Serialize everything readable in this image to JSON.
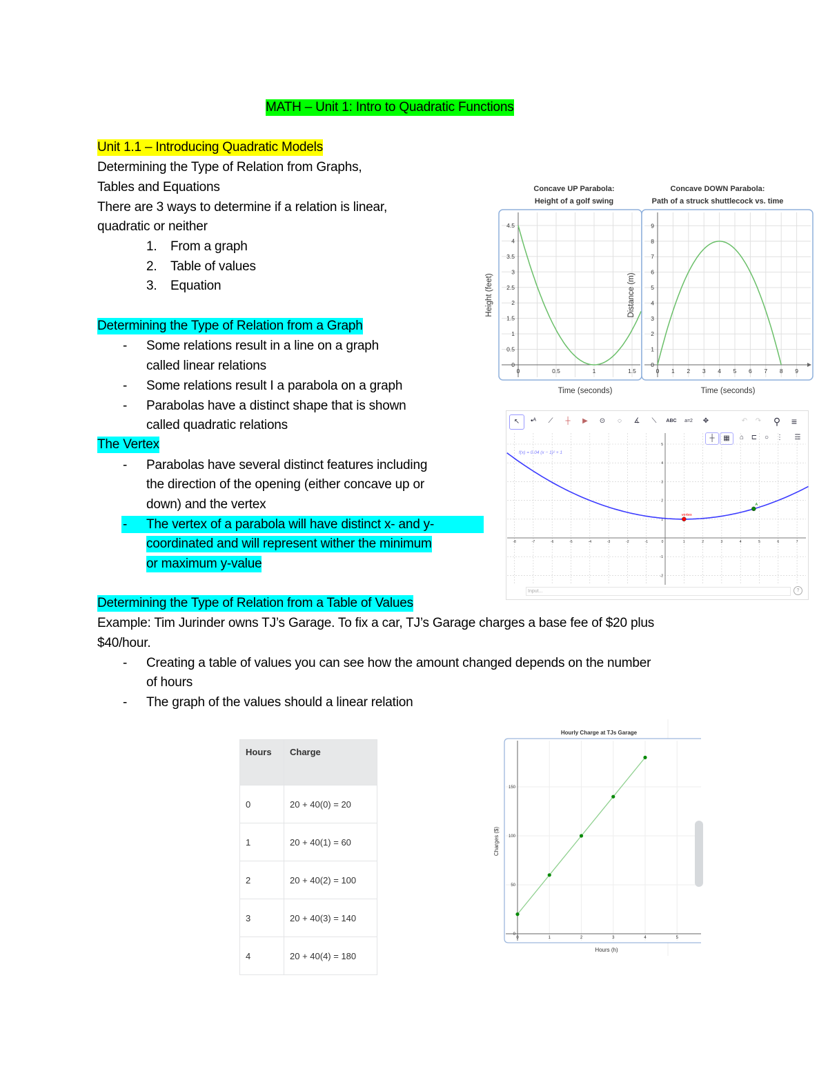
{
  "title": "MATH – Unit 1: Intro to Quadratic Functions",
  "section1": {
    "heading": "Unit 1.1 – Introducing Quadratic Models",
    "lines": [
      "Determining the Type of Relation from Graphs,",
      "Tables and Equations",
      "There are 3 ways to determine if a relation is linear,",
      "quadratic or neither"
    ],
    "list": [
      {
        "num": "1.",
        "text": "From a graph"
      },
      {
        "num": "2.",
        "text": "Table of values"
      },
      {
        "num": "3.",
        "text": "Equation"
      }
    ]
  },
  "section2": {
    "heading": "Determining the Type of Relation from a Graph",
    "bullets": [
      {
        "lines": [
          "Some relations result in a line on a graph",
          "called linear relations"
        ]
      },
      {
        "lines": [
          "Some relations result I a parabola on a graph"
        ]
      },
      {
        "lines": [
          "Parabolas have a distinct shape that is shown",
          "called quadratic relations"
        ]
      }
    ]
  },
  "section3": {
    "heading": "The Vertex",
    "bullets": [
      {
        "lines": [
          "Parabolas have several distinct features including",
          "the direction of the opening (either concave up or",
          "down) and the vertex"
        ]
      },
      {
        "lines": [
          "The vertex of a parabola will have distinct x- and y-",
          "coordinated and will represent wither the minimum",
          "or maximum y-value"
        ],
        "highlight": true
      }
    ]
  },
  "section4": {
    "heading": "Determining the Type of Relation from a Table of Values",
    "example_lines": [
      "Example: Tim Jurinder owns TJ’s Garage. To fix a car, TJ’s Garage charges a base fee of $20 plus",
      "$40/hour."
    ],
    "bullets": [
      {
        "lines": [
          "Creating a table of values you can see how the amount changed depends on the number",
          "of hours"
        ]
      },
      {
        "lines": [
          "The graph of the values should a linear relation"
        ]
      }
    ]
  },
  "bullet_char": "-",
  "table": {
    "headers": [
      "Hours",
      "Charge"
    ],
    "rows": [
      [
        "0",
        "20 + 40(0) = 20"
      ],
      [
        "1",
        "20 + 40(1) = 60"
      ],
      [
        "2",
        "20 + 40(2) = 100"
      ],
      [
        "3",
        "20 + 40(3) = 140"
      ],
      [
        "4",
        "20 + 40(4) = 180"
      ]
    ]
  },
  "geogebra": {
    "tools": [
      "cursor-icon",
      "point-icon",
      "line-icon",
      "perpendicular-icon",
      "polygon-icon",
      "circle-icon",
      "conic-icon",
      "angle-icon",
      "reflect-icon",
      "ABC",
      "a=2",
      "move-view-icon"
    ],
    "tool_labels": {
      "text": "ABC",
      "slider": "a=2"
    },
    "input_placeholder": "Input...",
    "help": "?",
    "curve_color": "#3b3bff"
  },
  "colors": {
    "highlight_green": "#00ff00",
    "highlight_yellow": "#ffff00",
    "highlight_cyan": "#00ffff",
    "curve_green": "#6abf69",
    "point_green": "#0a8a0a",
    "vertex_red": "#ff0000"
  },
  "chart_data": [
    {
      "type": "line",
      "title": [
        "Concave UP Parabola:",
        "Height of a golf swing"
      ],
      "xlabel": "Time (seconds)",
      "ylabel": "Height (feet)",
      "xlim": [
        0,
        1.6
      ],
      "ylim": [
        0,
        4.5
      ],
      "xticks": [
        "0",
        "0.5",
        "1",
        "1.5"
      ],
      "yticks": [
        "0",
        "0.5",
        "1",
        "1.5",
        "2",
        "2.5",
        "3",
        "3.5",
        "4",
        "4.5"
      ],
      "function": "y = 4.5(x - 1)^2",
      "vertex": [
        1,
        0
      ],
      "grid": true
    },
    {
      "type": "line",
      "title": [
        "Concave DOWN Parabola:",
        "Path of a struck shuttlecock vs. time"
      ],
      "xlabel": "Time (seconds)",
      "ylabel": "Distance (m)",
      "xlim": [
        0,
        9
      ],
      "ylim": [
        0,
        9
      ],
      "xticks": [
        "0",
        "1",
        "2",
        "3",
        "4",
        "5",
        "6",
        "7",
        "8",
        "9"
      ],
      "yticks": [
        "0",
        "1",
        "2",
        "3",
        "4",
        "5",
        "6",
        "7",
        "8",
        "9"
      ],
      "function": "y = -0.5(x - 4)^2 + 8",
      "vertex": [
        4,
        8
      ],
      "grid": true
    },
    {
      "type": "line",
      "equation_label": "f(x) = 0.04 (x − 1)² + 1",
      "xlim": [
        -8,
        7
      ],
      "ylim": [
        -2,
        5
      ],
      "xticks": [
        "-8",
        "-7",
        "-6",
        "-5",
        "-4",
        "-3",
        "-2",
        "-1",
        "0",
        "1",
        "2",
        "3",
        "4",
        "5",
        "6",
        "7"
      ],
      "yticks": [
        "-2",
        "-1",
        "1",
        "2",
        "3",
        "4",
        "5"
      ],
      "points": [
        {
          "label": "vertex",
          "x": 1,
          "y": 1,
          "color": "#ff0000"
        },
        {
          "label": "A",
          "x": 4.7,
          "y": 1.55,
          "color": "#0a8a0a"
        }
      ],
      "grid": true
    },
    {
      "type": "line",
      "title": "Hourly Charge at TJs Garage",
      "xlabel": "Hours (h)",
      "ylabel": "Charges ($)",
      "x": [
        0,
        1,
        2,
        3,
        4
      ],
      "y": [
        20,
        60,
        100,
        140,
        180
      ],
      "xlim": [
        0,
        5
      ],
      "ylim": [
        0,
        180
      ],
      "xticks": [
        "0",
        "1",
        "2",
        "3",
        "4",
        "5"
      ],
      "yticks": [
        "0",
        "50",
        "100",
        "150"
      ],
      "grid": true
    }
  ]
}
